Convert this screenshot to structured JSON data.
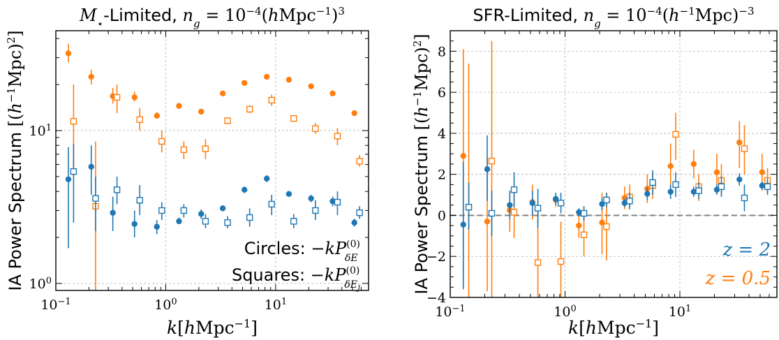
{
  "chart_data": [
    {
      "type": "scatter",
      "title": "M⋆-Limited, n_g = 10⁻⁴(hMpc⁻¹)³",
      "xlabel": "k[hMpc⁻¹]",
      "ylabel": "IA Power Spectrum [(h⁻¹Mpc)²]",
      "xscale": "log",
      "yscale": "log",
      "xlim": [
        0.1,
        70
      ],
      "ylim": [
        0.9,
        45
      ],
      "x_ticks": [
        {
          "value": 0.1,
          "base": "10",
          "exp": "−1"
        },
        {
          "value": 1,
          "base": "10",
          "exp": "0"
        },
        {
          "value": 10,
          "base": "10",
          "exp": "1"
        }
      ],
      "y_ticks": [
        {
          "value": 1,
          "base": "10",
          "exp": "0"
        },
        {
          "value": 10,
          "base": "10",
          "exp": "1"
        }
      ],
      "grid": true,
      "annotations": [
        {
          "prefix": "Circles:",
          "expr": "−kP",
          "sup": "(0)",
          "sub": "δE"
        },
        {
          "prefix": "Squares:",
          "expr": "−kP",
          "sup": "(0)",
          "sub": "δE_J"
        }
      ],
      "series": [
        {
          "color": "#ff7f0e",
          "marker": "circle",
          "points": [
            {
              "x": 0.13,
              "y": 32,
              "lo": 28,
              "hi": 37
            },
            {
              "x": 0.21,
              "y": 22.5,
              "lo": 20,
              "hi": 25
            },
            {
              "x": 0.33,
              "y": 16.8,
              "lo": 15,
              "hi": 19
            },
            {
              "x": 0.52,
              "y": 16.5,
              "lo": 15.5,
              "hi": 18
            },
            {
              "x": 0.83,
              "y": 12.5,
              "lo": 12,
              "hi": 13.2
            },
            {
              "x": 1.32,
              "y": 14.5,
              "lo": 14,
              "hi": 15
            },
            {
              "x": 2.1,
              "y": 13.3,
              "lo": 13,
              "hi": 13.8
            },
            {
              "x": 3.3,
              "y": 17.5,
              "lo": 17,
              "hi": 18
            },
            {
              "x": 5.2,
              "y": 20.5,
              "lo": 20,
              "hi": 21
            },
            {
              "x": 8.3,
              "y": 22.5,
              "lo": 22,
              "hi": 23
            },
            {
              "x": 13.2,
              "y": 21.5,
              "lo": 21,
              "hi": 22
            },
            {
              "x": 21,
              "y": 19.5,
              "lo": 19,
              "hi": 20
            },
            {
              "x": 33,
              "y": 17.5,
              "lo": 17,
              "hi": 18
            },
            {
              "x": 52,
              "y": 13,
              "lo": 12.6,
              "hi": 13.4
            }
          ]
        },
        {
          "color": "#ff7f0e",
          "marker": "square",
          "points": [
            {
              "x": 0.145,
              "y": 11.5,
              "lo": 5,
              "hi": 20
            },
            {
              "x": 0.23,
              "y": 3.2,
              "lo": 0.5,
              "hi": 8.5
            },
            {
              "x": 0.36,
              "y": 16.5,
              "lo": 13,
              "hi": 20
            },
            {
              "x": 0.58,
              "y": 11.8,
              "lo": 10,
              "hi": 14
            },
            {
              "x": 0.92,
              "y": 8.5,
              "lo": 7.2,
              "hi": 10
            },
            {
              "x": 1.46,
              "y": 7.5,
              "lo": 6.5,
              "hi": 8.5
            },
            {
              "x": 2.3,
              "y": 7.6,
              "lo": 6.5,
              "hi": 8.8
            },
            {
              "x": 3.65,
              "y": 11.6,
              "lo": 11,
              "hi": 12.2
            },
            {
              "x": 5.8,
              "y": 13.8,
              "lo": 13,
              "hi": 14.6
            },
            {
              "x": 9.2,
              "y": 15.8,
              "lo": 14.5,
              "hi": 17.2
            },
            {
              "x": 14.6,
              "y": 12,
              "lo": 11.4,
              "hi": 12.6
            },
            {
              "x": 23,
              "y": 10.3,
              "lo": 9.5,
              "hi": 11.2
            },
            {
              "x": 36.5,
              "y": 9.2,
              "lo": 8,
              "hi": 10.4
            },
            {
              "x": 58,
              "y": 6.3,
              "lo": 5.8,
              "hi": 6.9
            }
          ]
        },
        {
          "color": "#1f77b4",
          "marker": "circle",
          "points": [
            {
              "x": 0.13,
              "y": 4.8,
              "lo": 1.7,
              "hi": 7.8
            },
            {
              "x": 0.21,
              "y": 5.8,
              "lo": 3.8,
              "hi": 8
            },
            {
              "x": 0.33,
              "y": 2.9,
              "lo": 2.2,
              "hi": 3.7
            },
            {
              "x": 0.52,
              "y": 2.45,
              "lo": 2.0,
              "hi": 3.0
            },
            {
              "x": 0.83,
              "y": 2.35,
              "lo": 2.1,
              "hi": 2.6
            },
            {
              "x": 1.32,
              "y": 2.55,
              "lo": 2.45,
              "hi": 2.7
            },
            {
              "x": 2.1,
              "y": 2.85,
              "lo": 2.65,
              "hi": 3.05
            },
            {
              "x": 3.3,
              "y": 3.1,
              "lo": 3.0,
              "hi": 3.25
            },
            {
              "x": 5.2,
              "y": 4.1,
              "lo": 3.9,
              "hi": 4.3
            },
            {
              "x": 8.3,
              "y": 4.85,
              "lo": 4.6,
              "hi": 5.1
            },
            {
              "x": 13.2,
              "y": 3.85,
              "lo": 3.7,
              "hi": 4.0
            },
            {
              "x": 21,
              "y": 3.6,
              "lo": 3.4,
              "hi": 3.8
            },
            {
              "x": 33,
              "y": 3.45,
              "lo": 3.2,
              "hi": 3.7
            },
            {
              "x": 52,
              "y": 2.5,
              "lo": 2.35,
              "hi": 2.65
            }
          ]
        },
        {
          "color": "#1f77b4",
          "marker": "square",
          "points": [
            {
              "x": 0.145,
              "y": 5.4,
              "lo": 2.5,
              "hi": 8.2
            },
            {
              "x": 0.23,
              "y": 3.6,
              "lo": 2.2,
              "hi": 5
            },
            {
              "x": 0.36,
              "y": 4.1,
              "lo": 3.3,
              "hi": 5
            },
            {
              "x": 0.58,
              "y": 3.5,
              "lo": 2.8,
              "hi": 4.4
            },
            {
              "x": 0.92,
              "y": 3.0,
              "lo": 2.6,
              "hi": 3.4
            },
            {
              "x": 1.46,
              "y": 3.0,
              "lo": 2.7,
              "hi": 3.3
            },
            {
              "x": 2.3,
              "y": 2.55,
              "lo": 2.3,
              "hi": 2.85
            },
            {
              "x": 3.65,
              "y": 2.5,
              "lo": 2.3,
              "hi": 2.75
            },
            {
              "x": 5.8,
              "y": 2.7,
              "lo": 2.35,
              "hi": 3.1
            },
            {
              "x": 9.2,
              "y": 3.3,
              "lo": 2.8,
              "hi": 3.8
            },
            {
              "x": 14.6,
              "y": 2.55,
              "lo": 2.3,
              "hi": 2.85
            },
            {
              "x": 23,
              "y": 3.0,
              "lo": 2.6,
              "hi": 3.5
            },
            {
              "x": 36.5,
              "y": 3.4,
              "lo": 2.8,
              "hi": 4.0
            },
            {
              "x": 58,
              "y": 2.9,
              "lo": 2.65,
              "hi": 3.2
            }
          ]
        }
      ]
    },
    {
      "type": "scatter",
      "title": "SFR-Limited, n_g = 10⁻⁴(h⁻¹Mpc)⁻³",
      "xlabel": "k[hMpc⁻¹]",
      "ylabel": "IA Power Spectrum [(h⁻¹Mpc)²]",
      "xscale": "log",
      "yscale": "linear",
      "xlim": [
        0.1,
        70
      ],
      "ylim": [
        -4,
        9
      ],
      "x_ticks": [
        {
          "value": 0.1,
          "base": "10",
          "exp": "−1"
        },
        {
          "value": 1,
          "base": "10",
          "exp": "0"
        },
        {
          "value": 10,
          "base": "10",
          "exp": "1"
        }
      ],
      "y_ticks": [
        {
          "value": -4,
          "label": "−4"
        },
        {
          "value": -2,
          "label": "−2"
        },
        {
          "value": 0,
          "label": "0"
        },
        {
          "value": 2,
          "label": "2"
        },
        {
          "value": 4,
          "label": "4"
        },
        {
          "value": 6,
          "label": "6"
        },
        {
          "value": 8,
          "label": "8"
        }
      ],
      "grid": true,
      "hline": 0,
      "legend": [
        {
          "label": "z = 2",
          "color": "#1f77b4"
        },
        {
          "label": "z = 0.5",
          "color": "#ff7f0e"
        }
      ],
      "legend_position": "bottom-right",
      "series": [
        {
          "color": "#ff7f0e",
          "marker": "circle",
          "points": [
            {
              "x": 0.13,
              "y": 2.9,
              "lo": -3.0,
              "hi": 8.1
            },
            {
              "x": 0.21,
              "y": -0.3,
              "lo": -3.7,
              "hi": 2.8
            },
            {
              "x": 0.33,
              "y": 0.25,
              "lo": -0.8,
              "hi": 1.2
            },
            {
              "x": 0.52,
              "y": 0.65,
              "lo": -0.2,
              "hi": 1.5
            },
            {
              "x": 0.83,
              "y": 0.75,
              "lo": 0.4,
              "hi": 1.1
            },
            {
              "x": 1.32,
              "y": -0.5,
              "lo": -1.1,
              "hi": 0.1
            },
            {
              "x": 2.1,
              "y": -0.35,
              "lo": -1.9,
              "hi": 1.1
            },
            {
              "x": 3.3,
              "y": 0.85,
              "lo": 0.3,
              "hi": 1.4
            },
            {
              "x": 5.2,
              "y": 1.3,
              "lo": 0.6,
              "hi": 2.0
            },
            {
              "x": 8.3,
              "y": 2.4,
              "lo": 1.3,
              "hi": 3.5
            },
            {
              "x": 13.2,
              "y": 2.5,
              "lo": 1.8,
              "hi": 3.2
            },
            {
              "x": 21,
              "y": 2.1,
              "lo": 1.2,
              "hi": 3.0
            },
            {
              "x": 33,
              "y": 3.55,
              "lo": 2.3,
              "hi": 4.6
            },
            {
              "x": 52,
              "y": 2.1,
              "lo": 1.2,
              "hi": 3.0
            }
          ]
        },
        {
          "color": "#ff7f0e",
          "marker": "square",
          "points": [
            {
              "x": 0.145,
              "y": 0.4,
              "lo": -4.0,
              "hi": 7.4
            },
            {
              "x": 0.23,
              "y": 2.65,
              "lo": -4.0,
              "hi": 8.5
            },
            {
              "x": 0.36,
              "y": 0.15,
              "lo": -1.1,
              "hi": 1.4
            },
            {
              "x": 0.58,
              "y": -2.3,
              "lo": -4.0,
              "hi": 0.7
            },
            {
              "x": 0.92,
              "y": -2.25,
              "lo": -4.0,
              "hi": -0.3
            },
            {
              "x": 1.46,
              "y": -0.95,
              "lo": -2.0,
              "hi": 0.1
            },
            {
              "x": 2.3,
              "y": -0.55,
              "lo": -2.2,
              "hi": 1.1
            },
            {
              "x": 3.65,
              "y": 0.9,
              "lo": 0.3,
              "hi": 1.5
            },
            {
              "x": 5.8,
              "y": 1.45,
              "lo": 0.8,
              "hi": 2.1
            },
            {
              "x": 9.2,
              "y": 3.95,
              "lo": 2.7,
              "hi": 5.0
            },
            {
              "x": 14.6,
              "y": 1.4,
              "lo": 0.7,
              "hi": 2.0
            },
            {
              "x": 23,
              "y": 1.7,
              "lo": 1.0,
              "hi": 2.5
            },
            {
              "x": 36.5,
              "y": 3.25,
              "lo": 2.0,
              "hi": 4.4
            },
            {
              "x": 58,
              "y": 1.7,
              "lo": 1.1,
              "hi": 2.3
            }
          ]
        },
        {
          "color": "#1f77b4",
          "marker": "circle",
          "points": [
            {
              "x": 0.13,
              "y": -0.45,
              "lo": -3.6,
              "hi": 2.6
            },
            {
              "x": 0.21,
              "y": 2.25,
              "lo": 0.7,
              "hi": 3.9
            },
            {
              "x": 0.33,
              "y": 0.5,
              "lo": -0.2,
              "hi": 1.2
            },
            {
              "x": 0.52,
              "y": 0.6,
              "lo": 0.0,
              "hi": 1.2
            },
            {
              "x": 0.83,
              "y": 0.8,
              "lo": 0.5,
              "hi": 1.1
            },
            {
              "x": 1.32,
              "y": 0.15,
              "lo": -0.05,
              "hi": 0.35
            },
            {
              "x": 2.1,
              "y": 0.55,
              "lo": 0.25,
              "hi": 0.85
            },
            {
              "x": 3.3,
              "y": 0.6,
              "lo": 0.4,
              "hi": 0.8
            },
            {
              "x": 5.2,
              "y": 1.05,
              "lo": 0.75,
              "hi": 1.35
            },
            {
              "x": 8.3,
              "y": 1.15,
              "lo": 0.8,
              "hi": 1.5
            },
            {
              "x": 13.2,
              "y": 1.15,
              "lo": 0.9,
              "hi": 1.4
            },
            {
              "x": 21,
              "y": 1.25,
              "lo": 1.0,
              "hi": 1.5
            },
            {
              "x": 33,
              "y": 1.75,
              "lo": 1.45,
              "hi": 2.05
            },
            {
              "x": 52,
              "y": 1.45,
              "lo": 1.25,
              "hi": 1.65
            }
          ]
        },
        {
          "color": "#1f77b4",
          "marker": "square",
          "points": [
            {
              "x": 0.145,
              "y": 0.4,
              "lo": -0.7,
              "hi": 1.6
            },
            {
              "x": 0.23,
              "y": 0.1,
              "lo": -1.0,
              "hi": 1.2
            },
            {
              "x": 0.36,
              "y": 1.25,
              "lo": 0.4,
              "hi": 2.1
            },
            {
              "x": 0.58,
              "y": 0.35,
              "lo": -0.6,
              "hi": 1.3
            },
            {
              "x": 0.92,
              "y": 0.6,
              "lo": 0.1,
              "hi": 1.1
            },
            {
              "x": 1.46,
              "y": 0.1,
              "lo": -0.25,
              "hi": 0.45
            },
            {
              "x": 2.3,
              "y": 0.75,
              "lo": 0.4,
              "hi": 1.1
            },
            {
              "x": 3.65,
              "y": 0.7,
              "lo": 0.3,
              "hi": 1.1
            },
            {
              "x": 5.8,
              "y": 1.6,
              "lo": 1.0,
              "hi": 2.2
            },
            {
              "x": 9.2,
              "y": 1.5,
              "lo": 0.9,
              "hi": 2.1
            },
            {
              "x": 14.6,
              "y": 1.2,
              "lo": 0.8,
              "hi": 1.6
            },
            {
              "x": 23,
              "y": 1.4,
              "lo": 0.9,
              "hi": 1.9
            },
            {
              "x": 36.5,
              "y": 0.85,
              "lo": 0.2,
              "hi": 1.5
            },
            {
              "x": 58,
              "y": 1.4,
              "lo": 1.0,
              "hi": 1.8
            }
          ]
        }
      ]
    }
  ]
}
